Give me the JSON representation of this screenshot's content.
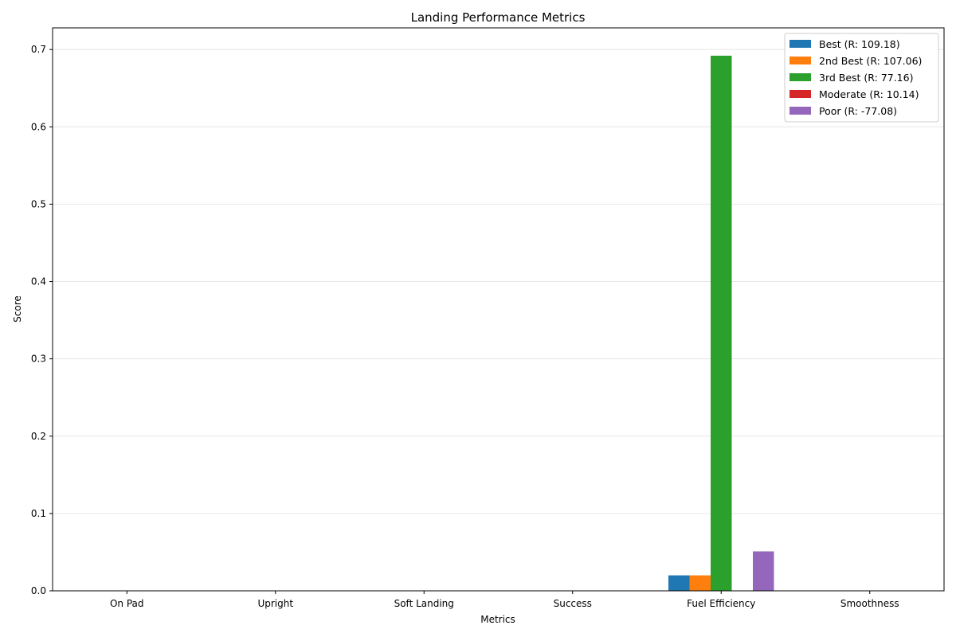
{
  "chart_data": {
    "type": "bar",
    "title": "Landing Performance Metrics",
    "xlabel": "Metrics",
    "ylabel": "Score",
    "categories": [
      "On Pad",
      "Upright",
      "Soft Landing",
      "Success",
      "Fuel Efficiency",
      "Smoothness"
    ],
    "ylim": [
      0,
      0.728
    ],
    "yticks": [
      0.0,
      0.1,
      0.2,
      0.3,
      0.4,
      0.5,
      0.6,
      0.7
    ],
    "ytick_labels": [
      "0.0",
      "0.1",
      "0.2",
      "0.3",
      "0.4",
      "0.5",
      "0.6",
      "0.7"
    ],
    "grid": "y-axis, light",
    "legend_position": "top-right",
    "series": [
      {
        "name": "Best (R: 109.18)",
        "color": "#1f77b4",
        "values": [
          0,
          0,
          0,
          0,
          0.02,
          0
        ]
      },
      {
        "name": "2nd Best (R: 107.06)",
        "color": "#ff7f0e",
        "values": [
          0,
          0,
          0,
          0,
          0.02,
          0
        ]
      },
      {
        "name": "3rd Best (R: 77.16)",
        "color": "#2ca02c",
        "values": [
          0,
          0,
          0,
          0,
          0.692,
          0
        ]
      },
      {
        "name": "Moderate (R: 10.14)",
        "color": "#d62728",
        "values": [
          0,
          0,
          0,
          0,
          0,
          0
        ]
      },
      {
        "name": "Poor (R: -77.08)",
        "color": "#9467bd",
        "values": [
          0,
          0,
          0,
          0,
          0.051,
          0
        ]
      }
    ]
  }
}
